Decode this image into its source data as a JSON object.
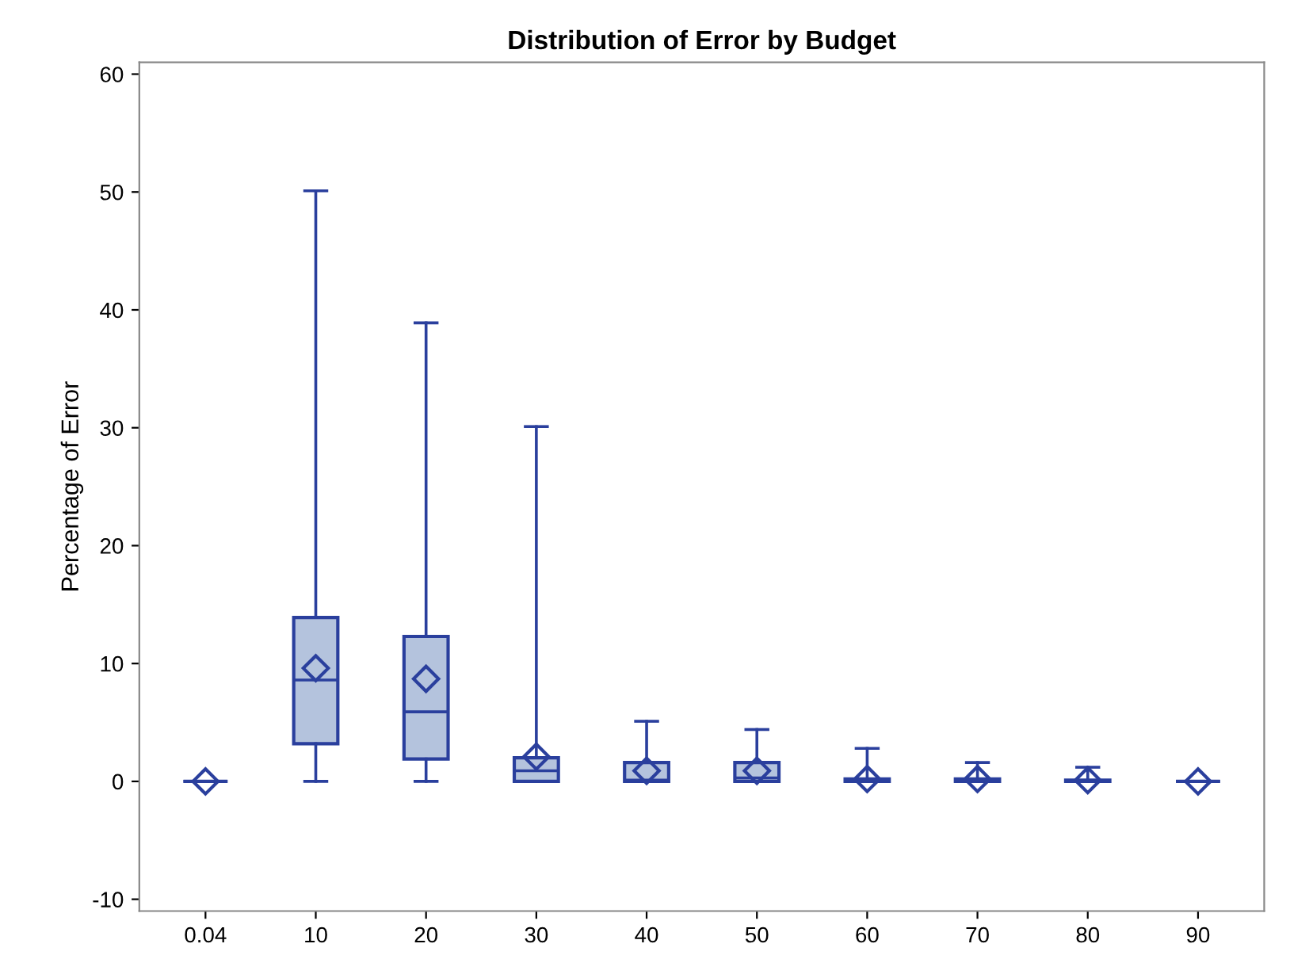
{
  "chart_data": {
    "type": "box",
    "title": "Distribution of Error by Budget",
    "ylabel": "Percentage of Error",
    "categories": [
      "0.04",
      "10",
      "20",
      "30",
      "40",
      "50",
      "60",
      "70",
      "80",
      "90"
    ],
    "ylim": [
      -11,
      61
    ],
    "yticks": [
      -10,
      0,
      10,
      20,
      30,
      40,
      50,
      60
    ],
    "grid": false,
    "marker": "diamond",
    "series": [
      {
        "color": "#2a3f9d",
        "boxes": [
          {
            "low": 0,
            "q1": 0,
            "median": 0,
            "q3": 0,
            "high": 0,
            "mean": 0
          },
          {
            "low": 0,
            "q1": 3.2,
            "median": 8.6,
            "q3": 13.9,
            "high": 50.1,
            "mean": 9.6
          },
          {
            "low": 0,
            "q1": 1.9,
            "median": 5.9,
            "q3": 12.3,
            "high": 38.9,
            "mean": 8.7
          },
          {
            "low": 0,
            "q1": 0,
            "median": 0.9,
            "q3": 2.0,
            "high": 30.1,
            "mean": 2.1
          },
          {
            "low": 0,
            "q1": 0,
            "median": 0.1,
            "q3": 1.6,
            "high": 5.1,
            "mean": 0.9
          },
          {
            "low": 0,
            "q1": 0,
            "median": 0.3,
            "q3": 1.6,
            "high": 4.4,
            "mean": 0.9
          },
          {
            "low": 0,
            "q1": 0,
            "median": 0.1,
            "q3": 0.2,
            "high": 2.8,
            "mean": 0.2
          },
          {
            "low": 0,
            "q1": 0,
            "median": 0.1,
            "q3": 0.2,
            "high": 1.6,
            "mean": 0.2
          },
          {
            "low": 0,
            "q1": 0,
            "median": 0,
            "q3": 0.1,
            "high": 1.2,
            "mean": 0.1
          },
          {
            "low": 0,
            "q1": 0,
            "median": 0,
            "q3": 0,
            "high": 0,
            "mean": 0
          }
        ]
      }
    ]
  }
}
